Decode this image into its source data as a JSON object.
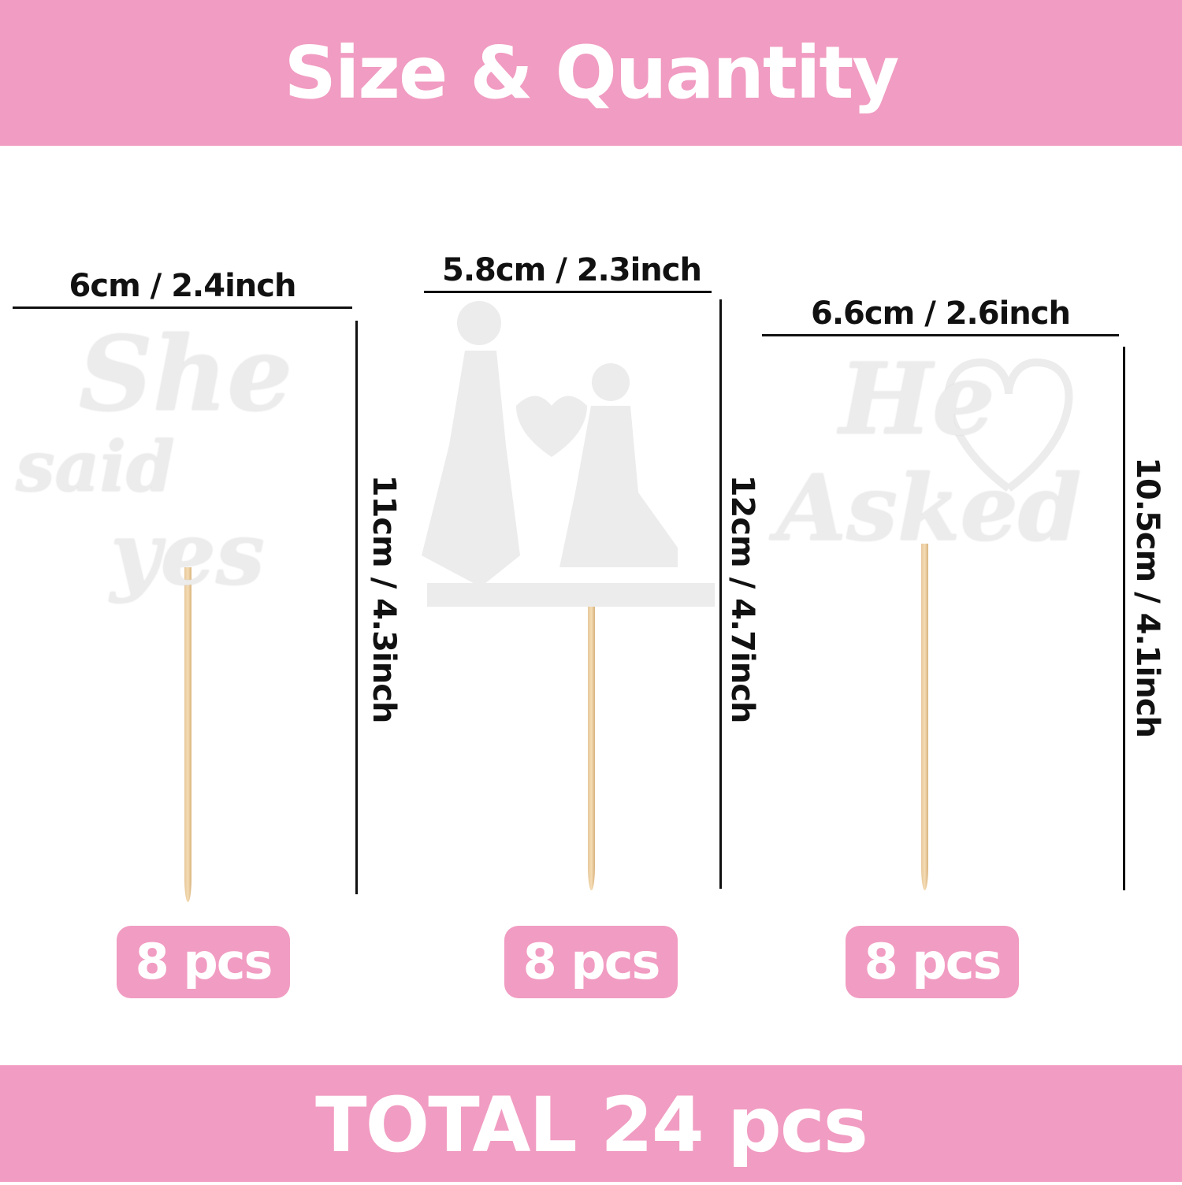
{
  "header": {
    "title": "Size & Quantity"
  },
  "items": [
    {
      "width": "6cm / 2.4inch",
      "height": "11cm / 4.3inch",
      "qty": "8 pcs",
      "topper_text": "She said yes"
    },
    {
      "width": "5.8cm / 2.3inch",
      "height": "12cm / 4.7inch",
      "qty": "8 pcs",
      "topper_text": ""
    },
    {
      "width": "6.6cm / 2.6inch",
      "height": "10.5cm / 4.1inch",
      "qty": "8 pcs",
      "topper_text": "He Asked"
    }
  ],
  "footer": {
    "total": "TOTAL 24 pcs"
  },
  "colors": {
    "accent": "#f19cc2",
    "topper": "#ececec",
    "stick": "#e6c79a"
  }
}
